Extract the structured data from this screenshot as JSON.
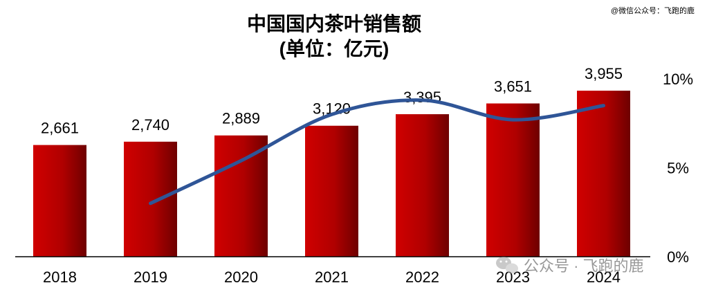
{
  "chart_data": {
    "type": "bar",
    "title": "中国国内茶叶销售额",
    "subtitle": "(单位：亿元)",
    "categories": [
      "2018",
      "2019",
      "2020",
      "2021",
      "2022",
      "2023",
      "2024"
    ],
    "series": [
      {
        "type": "bar",
        "axis": "left",
        "values": [
          2661,
          2740,
          2889,
          3120,
          3395,
          3651,
          3955
        ],
        "labels": [
          "2,661",
          "2,740",
          "2,889",
          "3,120",
          "3,395",
          "3,651",
          "3,955"
        ],
        "color": "#c00000"
      },
      {
        "type": "line",
        "axis": "right",
        "values": [
          null,
          3.0,
          5.4,
          8.0,
          8.8,
          7.7,
          8.5
        ],
        "color": "#2f5597"
      }
    ],
    "y_left": {
      "min": 0,
      "max": 4500,
      "visible": false
    },
    "y_right": {
      "min": 0,
      "max": 10,
      "ticks": [
        0,
        5,
        10
      ],
      "tick_labels": [
        "0%",
        "5%",
        "10%"
      ]
    },
    "grid": false,
    "legend": "none"
  },
  "watermark": {
    "top_text": "@微信公众号：飞跑的鹿",
    "bottom_text": "公众号 · 飞跑的鹿"
  }
}
